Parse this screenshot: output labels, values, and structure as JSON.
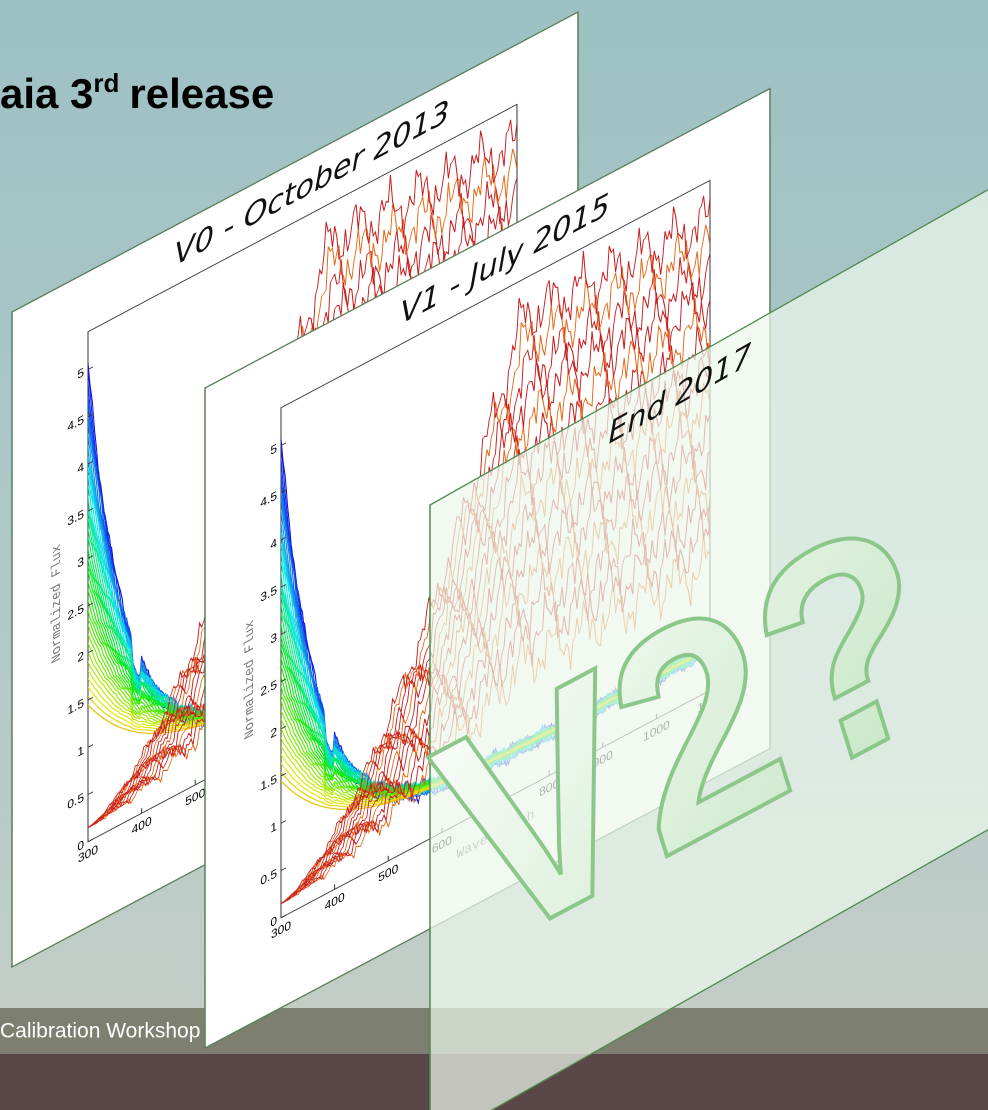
{
  "slide": {
    "title": {
      "text": "aia 3",
      "superscript": "rd",
      "rest": "release"
    },
    "footer": "Calibration Workshop",
    "panels": [
      {
        "label": "V0 - October 2013",
        "y_axis_label": "Normalized Flux",
        "yticks": [
          0,
          0.5,
          1,
          1.5,
          2,
          2.5,
          3,
          3.5,
          4,
          4.5,
          5
        ],
        "xticks": [
          300,
          400,
          500
        ]
      },
      {
        "label": "V1 - July 2015",
        "y_axis_label": "Normalized Flux",
        "x_axis_label": "Wavelength",
        "yticks": [
          0,
          0.5,
          1,
          1.5,
          2,
          2.5,
          3,
          3.5,
          4,
          4.5,
          5
        ],
        "xticks": [
          300,
          400,
          500,
          600,
          700,
          800,
          900,
          1000,
          1100
        ]
      },
      {
        "label": "End 2017",
        "overlay": "V2?"
      }
    ]
  }
}
